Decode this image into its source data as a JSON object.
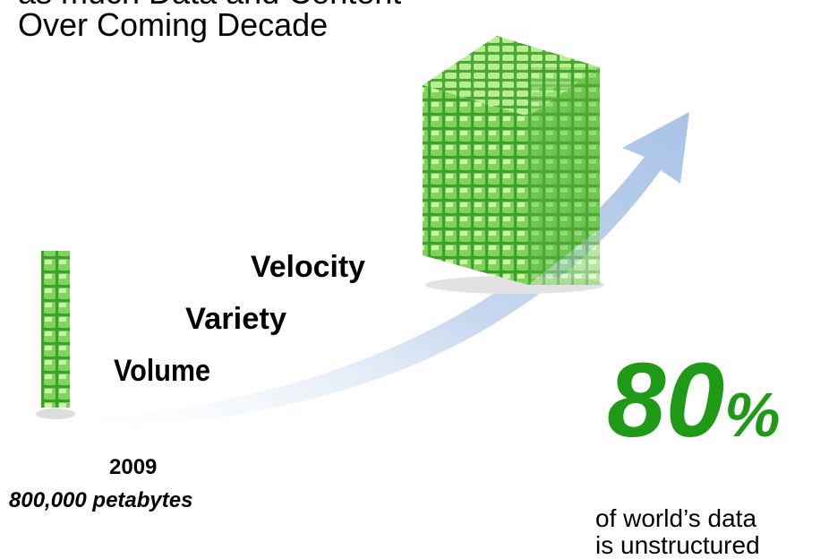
{
  "headline": {
    "lines": [
      "as much Data and Content",
      "Over Coming Decade"
    ]
  },
  "growth_labels": [
    "Velocity",
    "Variety",
    "Volume"
  ],
  "baseline": {
    "year": "2009",
    "amount": "800,000 petabytes"
  },
  "stat": {
    "number": "80",
    "unit": "%",
    "caption": [
      "of world’s data",
      "is unstructured"
    ]
  }
}
